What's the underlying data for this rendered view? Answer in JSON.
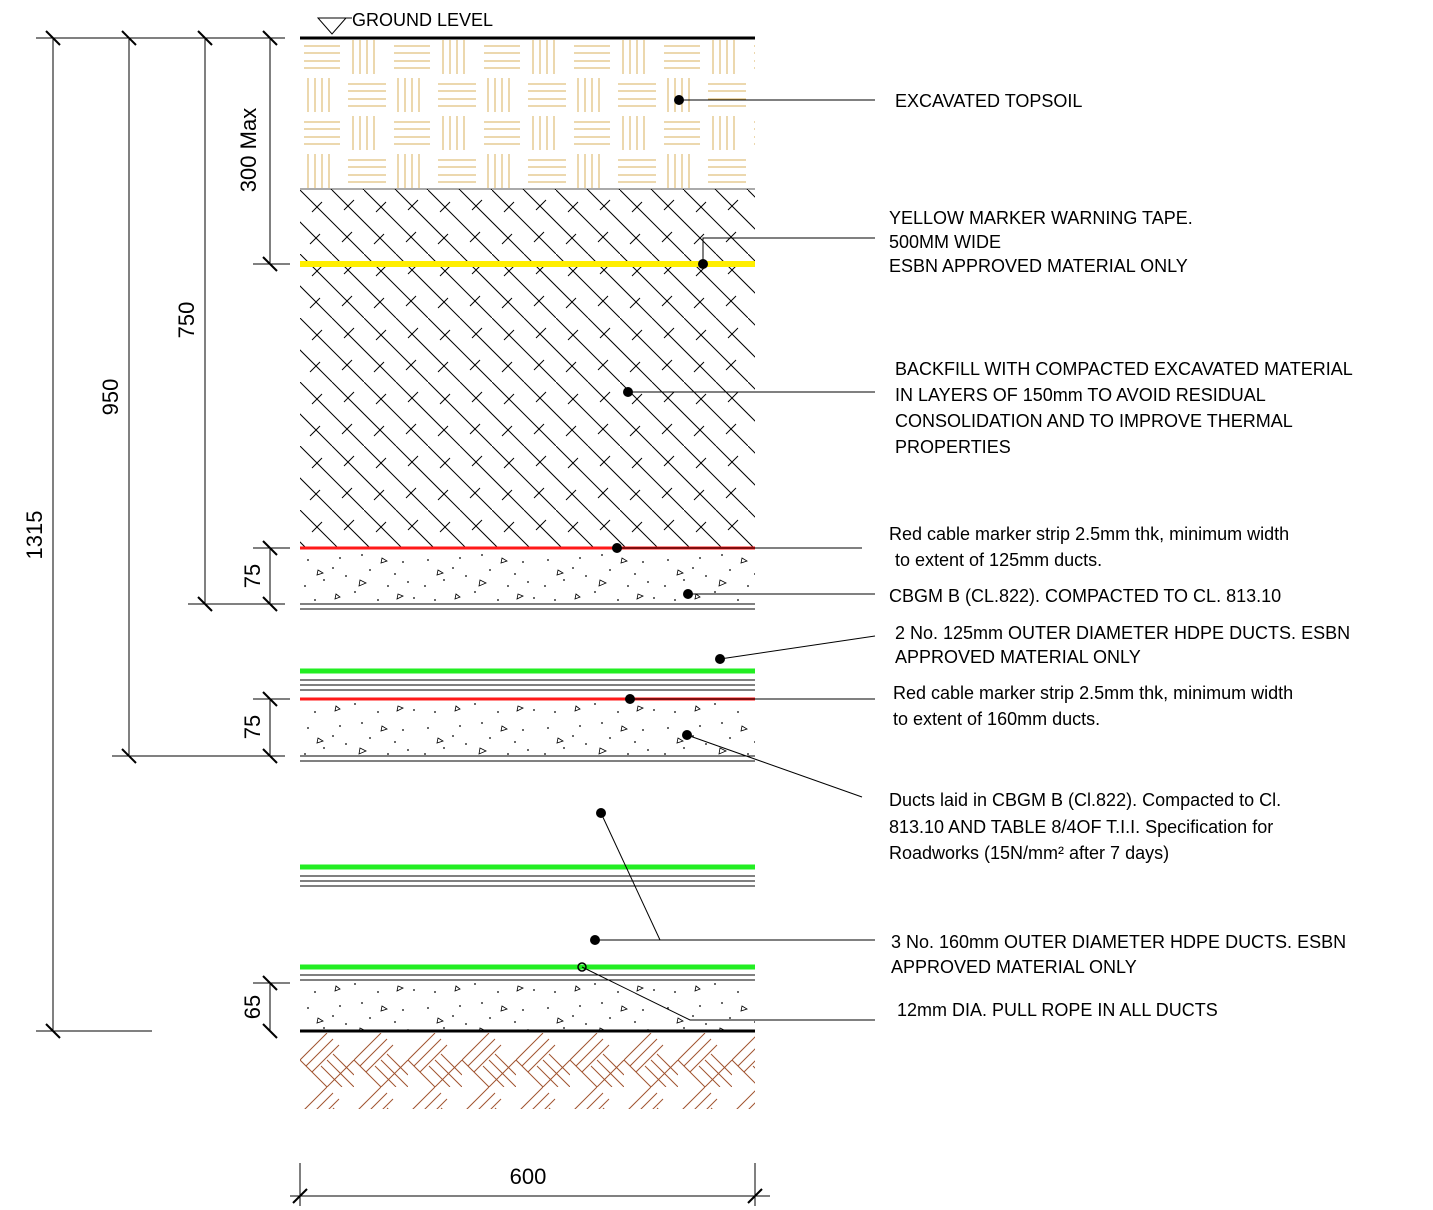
{
  "ground_level_label": "GROUND LEVEL",
  "dimensions": {
    "d1315": "1315",
    "d950": "950",
    "d750": "750",
    "d300": "300 Max",
    "d75_upper": "75",
    "d75_lower": "75",
    "d65": "65",
    "d600": "600"
  },
  "notes": {
    "topsoil": [
      "EXCAVATED TOPSOIL"
    ],
    "yellow_tape": [
      "YELLOW MARKER WARNING TAPE.",
      "500MM WIDE",
      "ESBN APPROVED MATERIAL ONLY"
    ],
    "backfill": [
      "BACKFILL WITH COMPACTED EXCAVATED MATERIAL",
      "IN LAYERS OF 150mm TO AVOID RESIDUAL",
      "CONSOLIDATION AND TO IMPROVE THERMAL",
      "PROPERTIES"
    ],
    "red_strip_upper": [
      "Red cable marker strip 2.5mm thk, minimum width",
      "to extent of 125mm ducts."
    ],
    "cbgm_upper": [
      "CBGM B (CL.822). COMPACTED TO CL. 813.10"
    ],
    "ducts_125": [
      "2 No. 125mm OUTER DIAMETER HDPE DUCTS. ESBN",
      "APPROVED MATERIAL ONLY"
    ],
    "red_strip_lower": [
      "Red cable marker strip 2.5mm thk, minimum width",
      "to extent of 160mm ducts."
    ],
    "ducts_cbgm": [
      "Ducts laid in CBGM B (Cl.822). Compacted to Cl.",
      "813.10 AND TABLE 8/4OF T.I.I. Specification for",
      "Roadworks (15N/mm² after 7 days)"
    ],
    "ducts_160": [
      "3 No. 160mm OUTER DIAMETER HDPE DUCTS. ESBN",
      "APPROVED MATERIAL ONLY"
    ],
    "pull_rope": [
      "12mm DIA. PULL ROPE IN ALL DUCTS"
    ]
  },
  "colors": {
    "topsoil_hatch": "#d8b25c",
    "subsoil_hatch": "#a0522d",
    "yellow_tape": "#ffee00",
    "red_strip": "#ff1a1a",
    "duct_green": "#22ee22",
    "line": "#000000"
  }
}
